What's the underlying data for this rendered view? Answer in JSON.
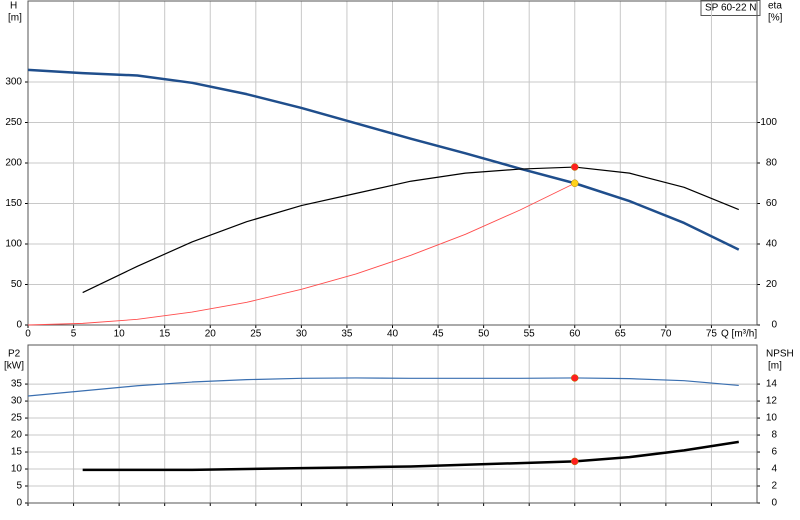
{
  "chart_data": [
    {
      "type": "line",
      "title": "SP 60-22 N",
      "ylabel": "H",
      "yunit": "[m]",
      "y2label": "eta",
      "y2unit": "[%]",
      "xlabel": "Q [m³/h]",
      "x": [
        0,
        6,
        12,
        18,
        24,
        30,
        36,
        42,
        48,
        54,
        60,
        66,
        72,
        78
      ],
      "xlim": [
        0,
        80
      ],
      "xticks": [
        0,
        5,
        10,
        15,
        20,
        25,
        30,
        35,
        40,
        45,
        50,
        55,
        60,
        65,
        70,
        75
      ],
      "xtick_labels": true,
      "ylim": [
        0,
        400
      ],
      "yticks": [
        0,
        50,
        100,
        150,
        200,
        250,
        300
      ],
      "y2lim": [
        0,
        160
      ],
      "y2ticks": [
        0,
        20,
        40,
        60,
        80,
        100
      ],
      "grid": true,
      "series": [
        {
          "color": "#1f4e8c",
          "width": 2.5,
          "values": [
            315,
            311,
            308,
            299,
            285,
            268,
            249,
            230,
            212,
            193,
            175,
            153,
            126,
            93
          ]
        },
        {
          "color": "#000000",
          "width": 1.2,
          "axis": "y2",
          "values": [
            null,
            16,
            29,
            41,
            51,
            59,
            65,
            71,
            75,
            77,
            78,
            75,
            68,
            57
          ]
        },
        {
          "color": "#ff4d4d",
          "width": 0.9,
          "values": [
            0,
            2,
            7,
            16,
            28,
            44,
            63,
            86,
            112,
            142,
            175,
            null,
            null,
            null
          ]
        },
        {
          "color": "#ff2020",
          "marker": "dot",
          "axis": "y2",
          "values": [
            null,
            null,
            null,
            null,
            null,
            null,
            null,
            null,
            null,
            null,
            78,
            null,
            null,
            null
          ]
        },
        {
          "color": "#ffd21a",
          "marker": "dot",
          "values": [
            null,
            null,
            null,
            null,
            null,
            null,
            null,
            null,
            null,
            null,
            175,
            null,
            null,
            null
          ]
        }
      ]
    },
    {
      "type": "line",
      "ylabel": "P2",
      "yunit": "[kW]",
      "y2label": "NPSH",
      "y2unit": "[m]",
      "x": [
        0,
        6,
        12,
        18,
        24,
        30,
        36,
        42,
        48,
        54,
        60,
        66,
        72,
        78
      ],
      "xlim": [
        0,
        80
      ],
      "xticks": [
        0,
        5,
        10,
        15,
        20,
        25,
        30,
        35,
        40,
        45,
        50,
        55,
        60,
        65,
        70,
        75
      ],
      "xtick_labels": false,
      "ylim": [
        0,
        46.5
      ],
      "yticks": [
        0,
        5,
        10,
        15,
        20,
        25,
        30,
        35
      ],
      "y2lim": [
        0,
        18.6
      ],
      "y2ticks": [
        0,
        2,
        4,
        6,
        8,
        10,
        12,
        14
      ],
      "grid": true,
      "series": [
        {
          "color": "#3a6fb0",
          "width": 1.2,
          "values": [
            31.5,
            33,
            34.5,
            35.6,
            36.3,
            36.7,
            36.8,
            36.7,
            36.7,
            36.7,
            36.8,
            36.6,
            36,
            34.6
          ]
        },
        {
          "color": "#000000",
          "width": 2.5,
          "axis": "y2",
          "values": [
            null,
            3.9,
            3.9,
            3.9,
            4,
            4.1,
            4.2,
            4.3,
            4.5,
            4.7,
            4.9,
            5.4,
            6.2,
            7.2
          ]
        },
        {
          "color": "#ff2020",
          "marker": "dot",
          "values": [
            null,
            null,
            null,
            null,
            null,
            null,
            null,
            null,
            null,
            null,
            36.8,
            null,
            null,
            null
          ]
        },
        {
          "color": "#ff2020",
          "marker": "dot",
          "axis": "y2",
          "values": [
            null,
            null,
            null,
            null,
            null,
            null,
            null,
            null,
            null,
            null,
            4.9,
            null,
            null,
            null
          ]
        }
      ]
    }
  ]
}
